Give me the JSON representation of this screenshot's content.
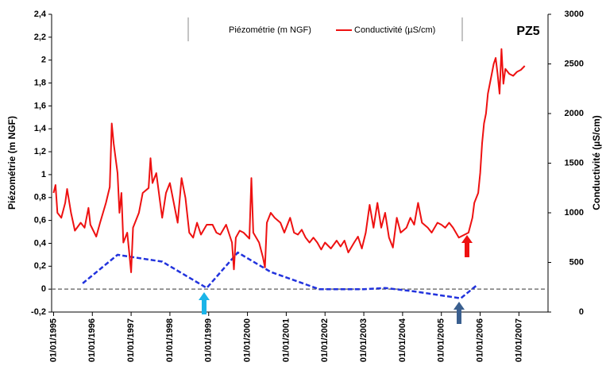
{
  "chart_data": {
    "type": "line",
    "title": "PZ5",
    "y_label": "Piézométrie (m NGF)",
    "y2_label": "Conductivité (µS/cm)",
    "xlim": [
      1994.95,
      2007.75
    ],
    "xticks": [
      {
        "value": 1995,
        "label": "01/01/1995"
      },
      {
        "value": 1996,
        "label": "01/01/1996"
      },
      {
        "value": 1997,
        "label": "01/01/1997"
      },
      {
        "value": 1998,
        "label": "01/01/1998"
      },
      {
        "value": 1999,
        "label": "01/01/1999"
      },
      {
        "value": 2000,
        "label": "01/01/2000"
      },
      {
        "value": 2001,
        "label": "01/01/2001"
      },
      {
        "value": 2002,
        "label": "01/01/2002"
      },
      {
        "value": 2003,
        "label": "01/01/2003"
      },
      {
        "value": 2004,
        "label": "01/01/2004"
      },
      {
        "value": 2005,
        "label": "01/01/2005"
      },
      {
        "value": 2006,
        "label": "01/01/2006"
      },
      {
        "value": 2007,
        "label": "01/01/2007"
      }
    ],
    "ylim": [
      -0.2,
      2.4
    ],
    "yticks": [
      {
        "value": -0.2,
        "label": "-0,2"
      },
      0,
      {
        "value": 0.2,
        "label": "0,2"
      },
      {
        "value": 0.4,
        "label": "0,4"
      },
      {
        "value": 0.6,
        "label": "0,6"
      },
      {
        "value": 0.8,
        "label": "0,8"
      },
      1,
      {
        "value": 1.2,
        "label": "1,2"
      },
      {
        "value": 1.4,
        "label": "1,4"
      },
      {
        "value": 1.6,
        "label": "1,6"
      },
      {
        "value": 1.8,
        "label": "1,8"
      },
      2,
      {
        "value": 2.2,
        "label": "2,2"
      },
      {
        "value": 2.4,
        "label": "2,4"
      }
    ],
    "y2lim": [
      0,
      3000
    ],
    "y2ticks": [
      0,
      500,
      1000,
      1500,
      2000,
      2500,
      3000
    ],
    "series": [
      {
        "name": "Piézométrie (m NGF)",
        "color": "#2233dd",
        "dashed": true,
        "x": [
          1995.75,
          1996.65,
          1997.8,
          1998.95,
          1999.75,
          2000.6,
          2001.85,
          2003.0,
          2003.55,
          2004.3,
          2005.5,
          2005.9
        ],
        "values": [
          0.05,
          0.3,
          0.24,
          0.01,
          0.32,
          0.15,
          0.0,
          0.0,
          0.01,
          -0.02,
          -0.08,
          0.03
        ]
      },
      {
        "name": "Conductivité (µS/cm)",
        "color": "#ee1111",
        "axis": "y2",
        "x": [
          1995.0,
          1995.05,
          1995.1,
          1995.2,
          1995.3,
          1995.35,
          1995.45,
          1995.55,
          1995.7,
          1995.8,
          1995.9,
          1995.95,
          1996.1,
          1996.2,
          1996.35,
          1996.45,
          1996.5,
          1996.55,
          1996.65,
          1996.7,
          1996.75,
          1996.8,
          1996.9,
          1996.95,
          1997.0,
          1997.05,
          1997.2,
          1997.3,
          1997.45,
          1997.5,
          1997.55,
          1997.65,
          1997.75,
          1997.8,
          1997.9,
          1998.0,
          1998.1,
          1998.2,
          1998.3,
          1998.4,
          1998.5,
          1998.6,
          1998.7,
          1998.8,
          1998.95,
          1999.1,
          1999.2,
          1999.3,
          1999.45,
          1999.6,
          1999.65,
          1999.7,
          1999.8,
          1999.9,
          2000.05,
          2000.1,
          2000.15,
          2000.3,
          2000.4,
          2000.45,
          2000.5,
          2000.6,
          2000.7,
          2000.85,
          2000.95,
          2001.1,
          2001.2,
          2001.3,
          2001.4,
          2001.5,
          2001.6,
          2001.7,
          2001.8,
          2001.9,
          2002.0,
          2002.15,
          2002.3,
          2002.4,
          2002.5,
          2002.6,
          2002.75,
          2002.85,
          2002.95,
          2003.05,
          2003.15,
          2003.25,
          2003.35,
          2003.45,
          2003.55,
          2003.65,
          2003.75,
          2003.85,
          2003.95,
          2004.1,
          2004.2,
          2004.3,
          2004.4,
          2004.5,
          2004.65,
          2004.75,
          2004.9,
          2005.0,
          2005.1,
          2005.2,
          2005.3,
          2005.45,
          2005.6,
          2005.7,
          2005.8,
          2005.85,
          2005.95,
          2006.0,
          2006.05,
          2006.1,
          2006.15,
          2006.2,
          2006.3,
          2006.35,
          2006.4,
          2006.45,
          2006.5,
          2006.55,
          2006.6,
          2006.65,
          2006.75,
          2006.85,
          2006.95,
          2007.05,
          2007.15
        ],
        "values": [
          1200,
          1280,
          1000,
          950,
          1100,
          1240,
          1000,
          820,
          900,
          850,
          1050,
          880,
          760,
          900,
          1100,
          1260,
          1900,
          1700,
          1400,
          1000,
          1200,
          700,
          800,
          600,
          400,
          850,
          1000,
          1200,
          1250,
          1550,
          1300,
          1400,
          1100,
          950,
          1200,
          1300,
          1100,
          900,
          1350,
          1150,
          800,
          750,
          900,
          780,
          880,
          880,
          800,
          780,
          880,
          700,
          430,
          750,
          820,
          800,
          740,
          1350,
          800,
          700,
          550,
          450,
          900,
          1000,
          950,
          900,
          800,
          950,
          800,
          780,
          830,
          750,
          700,
          750,
          700,
          630,
          700,
          640,
          720,
          660,
          720,
          600,
          700,
          760,
          640,
          800,
          1080,
          850,
          1100,
          850,
          1000,
          750,
          650,
          950,
          800,
          850,
          950,
          880,
          1100,
          900,
          850,
          800,
          900,
          880,
          850,
          900,
          850,
          750,
          780,
          800,
          950,
          1100,
          1200,
          1400,
          1700,
          1900,
          2000,
          2200,
          2400,
          2500,
          2560,
          2400,
          2200,
          2650,
          2300,
          2450,
          2400,
          2380,
          2420,
          2440,
          2480
        ]
      }
    ]
  }
}
